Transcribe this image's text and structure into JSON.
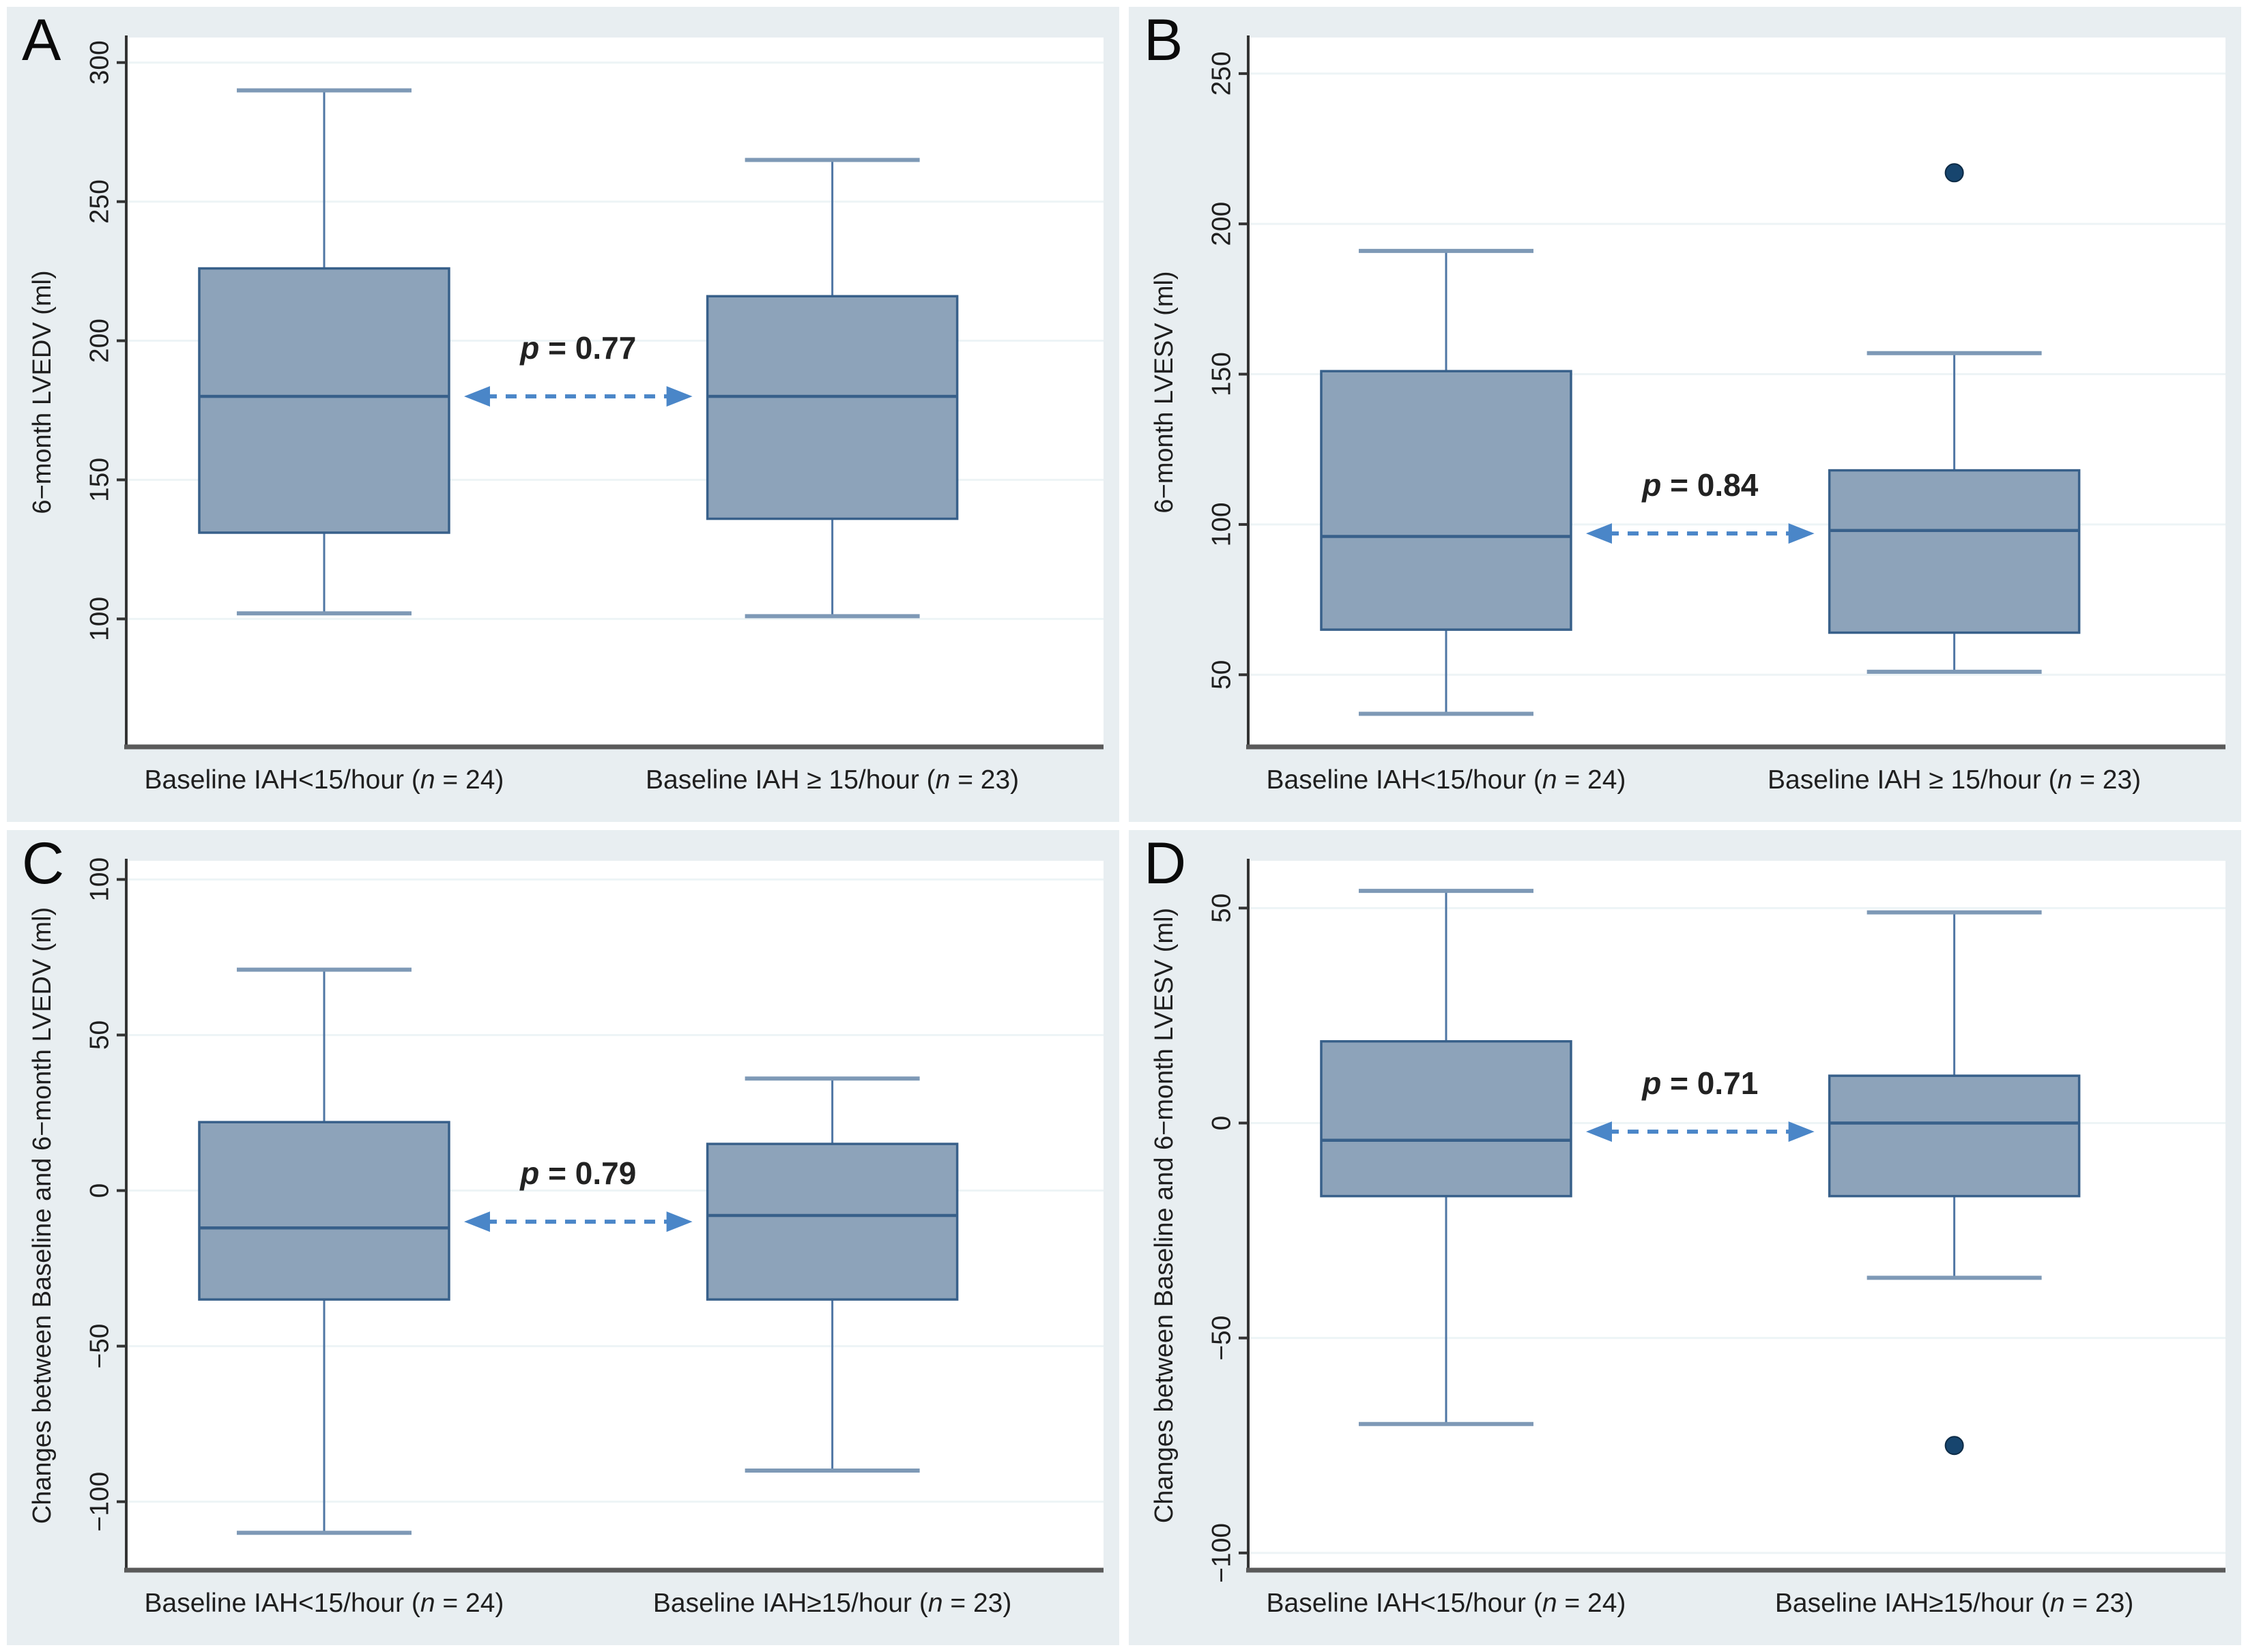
{
  "figure": {
    "background": "#ffffff",
    "panel_background": "#e8eef1"
  },
  "colors": {
    "box_fill": "#8da3ba",
    "box_border": "#38608a",
    "whisker": "#4f76a4",
    "whisker_cap": "#7e99b6",
    "grid": "#edf4f6",
    "axis_vertical": "#333333",
    "axis_horizontal": "#5a5a5a",
    "arrow": "#4a86c8",
    "outlier": "#17456e",
    "text": "#1f1f1f",
    "p_text": "#222222"
  },
  "chart_data": [
    {
      "type": "box",
      "panel_label": "A",
      "ylabel": "6−month LVEDV (ml)",
      "yticks": [
        300,
        250,
        200,
        150,
        100
      ],
      "ylim": [
        54,
        309
      ],
      "grid": true,
      "p_italic": "p",
      "p_text": " = 0.77",
      "groups": [
        {
          "label_pre": "Baseline IAH<15/hour (",
          "label_italic": "n",
          "label_post": " = 24)",
          "stats": {
            "min": 102,
            "q1": 131,
            "median": 180,
            "q3": 226,
            "max": 290
          },
          "outliers": []
        },
        {
          "label_pre": "Baseline IAH ≥ 15/hour (",
          "label_italic": "n",
          "label_post": " = 23)",
          "stats": {
            "min": 101,
            "q1": 136,
            "median": 180,
            "q3": 216,
            "max": 265
          },
          "outliers": []
        }
      ]
    },
    {
      "type": "box",
      "panel_label": "B",
      "ylabel": "6−month LVESV (ml)",
      "yticks": [
        250,
        200,
        150,
        100,
        50
      ],
      "ylim": [
        26,
        262
      ],
      "grid": true,
      "p_italic": "p",
      "p_text": " = 0.84",
      "groups": [
        {
          "label_pre": "Baseline IAH<15/hour (",
          "label_italic": "n",
          "label_post": " = 24)",
          "stats": {
            "min": 37,
            "q1": 65,
            "median": 96,
            "q3": 151,
            "max": 191
          },
          "outliers": []
        },
        {
          "label_pre": "Baseline IAH ≥ 15/hour (",
          "label_italic": "n",
          "label_post": " = 23)",
          "stats": {
            "min": 51,
            "q1": 64,
            "median": 98,
            "q3": 118,
            "max": 157
          },
          "outliers": [
            217
          ]
        }
      ]
    },
    {
      "type": "box",
      "panel_label": "C",
      "ylabel": "Changes between Baseline and 6−month LVEDV (ml)",
      "yticks": [
        100,
        50,
        0,
        -50,
        -100
      ],
      "ylim": [
        -122,
        106
      ],
      "grid": true,
      "p_italic": "p",
      "p_text": " = 0.79",
      "groups": [
        {
          "label_pre": "Baseline IAH<15/hour (",
          "label_italic": "n",
          "label_post": " = 24)",
          "stats": {
            "min": -110,
            "q1": -35,
            "median": -12,
            "q3": 22,
            "max": 71
          },
          "outliers": []
        },
        {
          "label_pre": "Baseline IAH≥15/hour (",
          "label_italic": "n",
          "label_post": " = 23)",
          "stats": {
            "min": -90,
            "q1": -35,
            "median": -8,
            "q3": 15,
            "max": 36
          },
          "outliers": []
        }
      ]
    },
    {
      "type": "box",
      "panel_label": "D",
      "ylabel": "Changes between Baseline and 6−month LVESV (ml)",
      "yticks": [
        50,
        0,
        -50,
        -100
      ],
      "ylim": [
        -104,
        61
      ],
      "grid": true,
      "p_italic": "p",
      "p_text": " = 0.71",
      "groups": [
        {
          "label_pre": "Baseline IAH<15/hour (",
          "label_italic": "n",
          "label_post": " = 24)",
          "stats": {
            "min": -70,
            "q1": -17,
            "median": -4,
            "q3": 19,
            "max": 54
          },
          "outliers": []
        },
        {
          "label_pre": "Baseline IAH≥15/hour (",
          "label_italic": "n",
          "label_post": " = 23)",
          "stats": {
            "min": -36,
            "q1": -17,
            "median": 0,
            "q3": 11,
            "max": 49
          },
          "outliers": [
            -75
          ]
        }
      ]
    }
  ]
}
